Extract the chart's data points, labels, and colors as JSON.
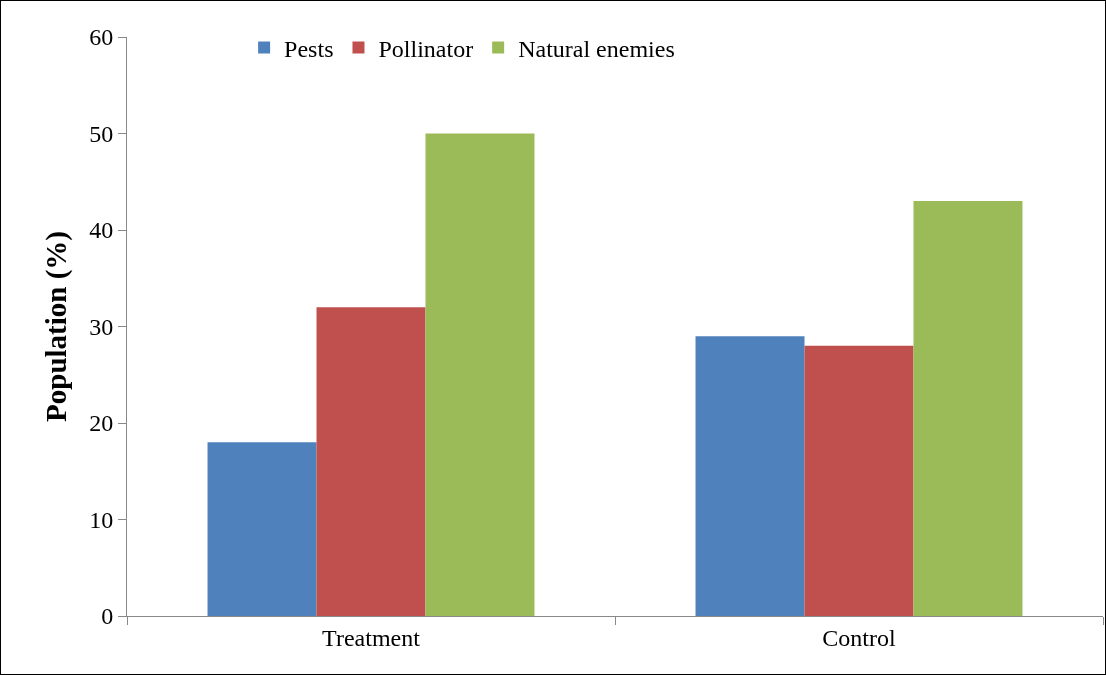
{
  "chart_data": {
    "type": "bar",
    "ylabel": "Population (%)",
    "categories": [
      "Treatment",
      "Control"
    ],
    "series": [
      {
        "name": "Pests",
        "color": "#4f81bd",
        "values": [
          18,
          29
        ]
      },
      {
        "name": "Pollinator",
        "color": "#c0504d",
        "values": [
          32,
          28
        ]
      },
      {
        "name": "Natural enemies",
        "color": "#9bbb59",
        "values": [
          50,
          43
        ]
      }
    ],
    "ylim": [
      0,
      60
    ],
    "yticks": [
      0,
      10,
      20,
      30,
      40,
      50,
      60
    ],
    "grid": false,
    "legend": "top"
  }
}
